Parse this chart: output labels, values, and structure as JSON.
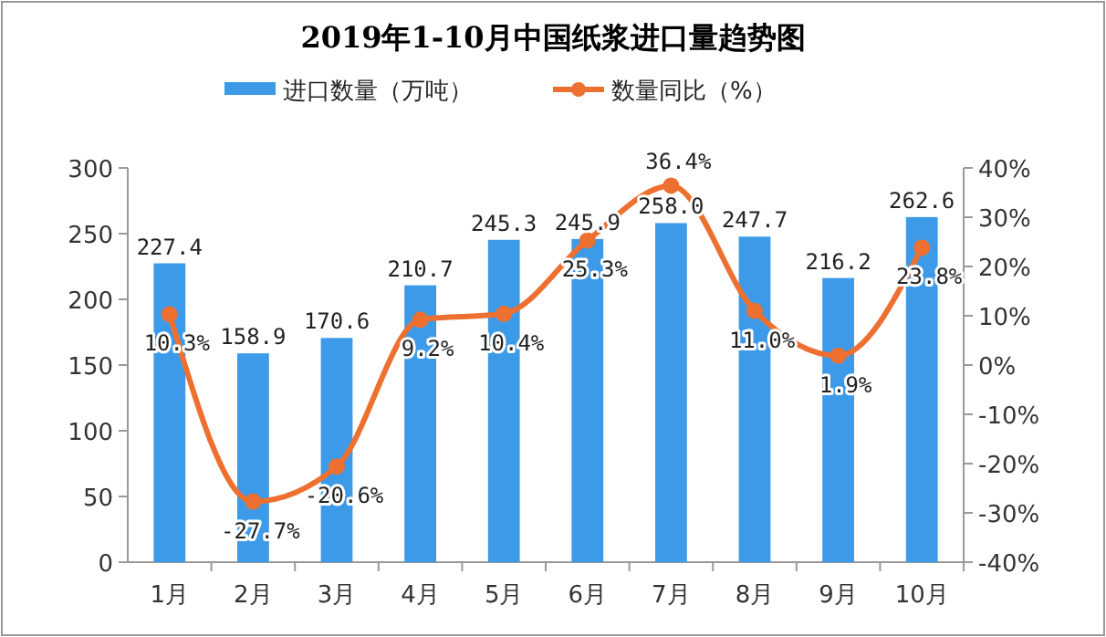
{
  "chart_data": {
    "type": "bar",
    "title": "2019年1-10月中国纸浆进口量趋势图",
    "categories": [
      "1月",
      "2月",
      "3月",
      "4月",
      "5月",
      "6月",
      "7月",
      "8月",
      "9月",
      "10月"
    ],
    "series": [
      {
        "name": "进口数量（万吨）",
        "color": "#3d9ae8",
        "values": [
          227.4,
          158.9,
          170.6,
          210.7,
          245.3,
          245.9,
          258.0,
          247.7,
          216.2,
          262.6
        ],
        "value_labels": [
          "227.4",
          "158.9",
          "170.6",
          "210.7",
          "245.3",
          "245.9",
          "258.0",
          "247.7",
          "216.2",
          "262.6"
        ]
      },
      {
        "name": "数量同比（%）",
        "type": "line",
        "axis": "y2",
        "color": "#ed7031",
        "marker": "circle",
        "values": [
          10.3,
          -27.7,
          -20.6,
          9.2,
          10.4,
          25.3,
          36.4,
          11.0,
          1.9,
          23.8
        ],
        "value_labels": [
          "10.3%",
          "-27.7%",
          "-20.6%",
          "9.2%",
          "10.4%",
          "25.3%",
          "36.4%",
          "11.0%",
          "1.9%",
          "23.8%"
        ]
      }
    ],
    "ylim": [
      0,
      300
    ],
    "yticks": [
      0,
      50,
      100,
      150,
      200,
      250,
      300
    ],
    "y2lim": [
      -40,
      40
    ],
    "y2ticks": [
      {
        "value": -40,
        "label": "-40%"
      },
      {
        "value": -30,
        "label": "-30%"
      },
      {
        "value": -20,
        "label": "-20%"
      },
      {
        "value": -10,
        "label": "-10%"
      },
      {
        "value": 0,
        "label": "0%"
      },
      {
        "value": 10,
        "label": "10%"
      },
      {
        "value": 20,
        "label": "20%"
      },
      {
        "value": 30,
        "label": "30%"
      },
      {
        "value": 40,
        "label": "40%"
      }
    ],
    "legend": "top",
    "grid": false
  }
}
